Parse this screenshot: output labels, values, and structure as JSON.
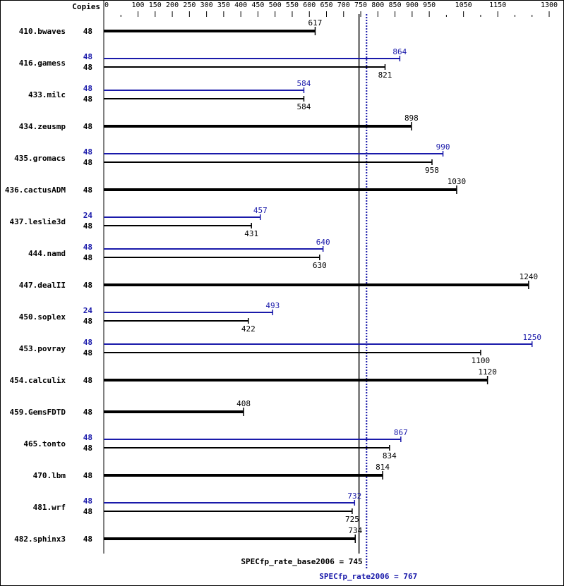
{
  "chart_data": {
    "type": "bar",
    "orientation": "horizontal",
    "copies_header": "Copies",
    "xlim": [
      0,
      1300
    ],
    "ticks_labeled": [
      0,
      100,
      150,
      200,
      250,
      300,
      350,
      400,
      450,
      500,
      550,
      600,
      650,
      700,
      750,
      800,
      850,
      900,
      950,
      1050,
      1150,
      1300
    ],
    "ticks_minor": [
      50,
      1000,
      1100,
      1200,
      1250
    ],
    "colors": {
      "base": "#000000",
      "peak": "#1a1aaa"
    },
    "benchmarks": [
      {
        "name": "410.bwaves",
        "base_copies": "48",
        "base": 617
      },
      {
        "name": "416.gamess",
        "peak_copies": "48",
        "peak": 864,
        "base_copies": "48",
        "base": 821
      },
      {
        "name": "433.milc",
        "peak_copies": "48",
        "peak": 584,
        "base_copies": "48",
        "base": 584
      },
      {
        "name": "434.zeusmp",
        "base_copies": "48",
        "base": 898
      },
      {
        "name": "435.gromacs",
        "peak_copies": "48",
        "peak": 990,
        "base_copies": "48",
        "base": 958
      },
      {
        "name": "436.cactusADM",
        "base_copies": "48",
        "base": 1030
      },
      {
        "name": "437.leslie3d",
        "peak_copies": "24",
        "peak": 457,
        "base_copies": "48",
        "base": 431
      },
      {
        "name": "444.namd",
        "peak_copies": "48",
        "peak": 640,
        "base_copies": "48",
        "base": 630
      },
      {
        "name": "447.dealII",
        "base_copies": "48",
        "base": 1240
      },
      {
        "name": "450.soplex",
        "peak_copies": "24",
        "peak": 493,
        "base_copies": "48",
        "base": 422
      },
      {
        "name": "453.povray",
        "peak_copies": "48",
        "peak": 1250,
        "base_copies": "48",
        "base": 1100
      },
      {
        "name": "454.calculix",
        "base_copies": "48",
        "base": 1120
      },
      {
        "name": "459.GemsFDTD",
        "base_copies": "48",
        "base": 408
      },
      {
        "name": "465.tonto",
        "peak_copies": "48",
        "peak": 867,
        "base_copies": "48",
        "base": 834
      },
      {
        "name": "470.lbm",
        "base_copies": "48",
        "base": 814
      },
      {
        "name": "481.wrf",
        "peak_copies": "48",
        "peak": 732,
        "base_copies": "48",
        "base": 725
      },
      {
        "name": "482.sphinx3",
        "base_copies": "48",
        "base": 734
      }
    ],
    "reference_lines": {
      "base": {
        "label": "SPECfp_rate_base2006 = 745",
        "value": 745
      },
      "peak": {
        "label": "SPECfp_rate2006 = 767",
        "value": 767
      }
    }
  }
}
